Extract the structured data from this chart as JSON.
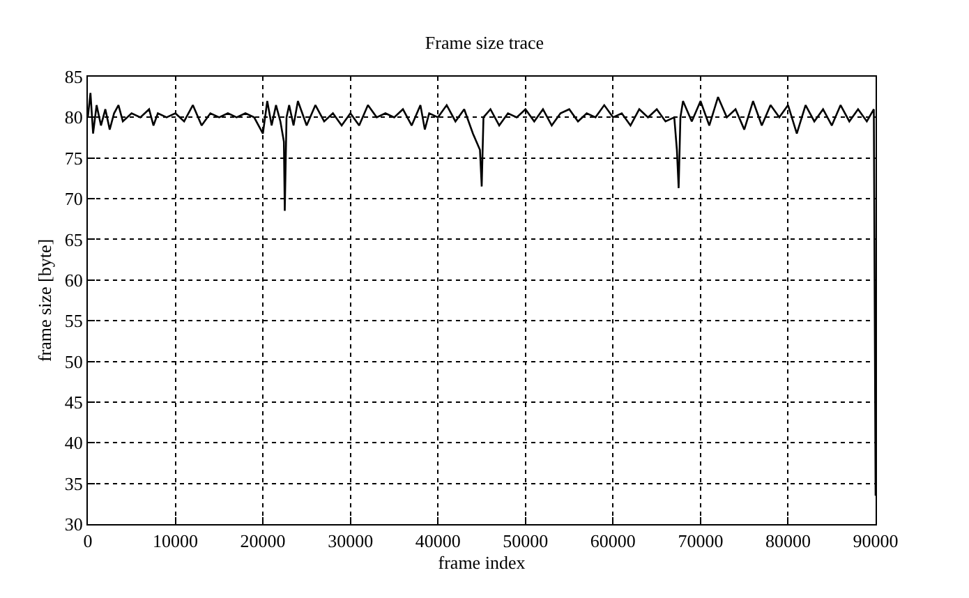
{
  "chart_data": {
    "type": "line",
    "title": "Frame size trace",
    "xlabel": "frame index",
    "ylabel": "frame size [byte]",
    "x": [
      0,
      300,
      600,
      1000,
      1500,
      2000,
      2500,
      3000,
      3500,
      4000,
      5000,
      6000,
      7000,
      7500,
      8000,
      9000,
      10000,
      11000,
      12000,
      13000,
      14000,
      15000,
      16000,
      17000,
      18000,
      19000,
      20000,
      20500,
      21000,
      21500,
      22000,
      22400,
      22500,
      22700,
      23000,
      23500,
      24000,
      25000,
      26000,
      27000,
      28000,
      29000,
      30000,
      31000,
      32000,
      33000,
      34000,
      35000,
      36000,
      37000,
      38000,
      38500,
      39000,
      40000,
      41000,
      42000,
      43000,
      44000,
      44800,
      45000,
      45200,
      46000,
      47000,
      48000,
      49000,
      50000,
      51000,
      52000,
      53000,
      54000,
      55000,
      56000,
      57000,
      58000,
      59000,
      60000,
      61000,
      62000,
      63000,
      64000,
      65000,
      66000,
      67000,
      67300,
      67500,
      67700,
      68000,
      69000,
      70000,
      71000,
      72000,
      73000,
      74000,
      75000,
      76000,
      77000,
      78000,
      79000,
      80000,
      81000,
      82000,
      83000,
      84000,
      85000,
      86000,
      87000,
      88000,
      89000,
      89800,
      90000
    ],
    "series": [
      {
        "color": "#000000",
        "values": [
          80,
          83,
          78,
          81.5,
          79,
          81,
          78.5,
          80.5,
          81.5,
          79.5,
          80.5,
          80,
          81,
          79,
          80.5,
          80,
          80.5,
          79.5,
          81.5,
          79,
          80.5,
          80,
          80.5,
          80,
          80.5,
          80,
          78,
          82,
          79,
          81.5,
          79.5,
          77,
          68.5,
          80,
          81.5,
          79,
          82,
          79,
          81.5,
          79.5,
          80.5,
          79,
          80.5,
          79,
          81.5,
          80,
          80.5,
          80,
          81,
          79,
          81.5,
          78.5,
          80.5,
          80,
          81.5,
          79.5,
          81,
          78,
          76,
          71.5,
          80,
          81,
          79,
          80.5,
          80,
          81,
          79.5,
          81,
          79,
          80.5,
          81,
          79.5,
          80.5,
          80,
          81.5,
          80,
          80.5,
          79,
          81,
          80,
          81,
          79.5,
          80,
          76,
          71.3,
          80,
          82,
          79.5,
          82,
          79,
          82.5,
          80,
          81,
          78.5,
          82,
          79,
          81.5,
          80,
          81.5,
          78,
          81.5,
          79.5,
          81,
          79,
          81.5,
          79.5,
          81,
          79.5,
          81,
          33.5
        ]
      }
    ],
    "xlim": [
      0,
      90000
    ],
    "xticks": [
      0,
      10000,
      20000,
      30000,
      40000,
      50000,
      60000,
      70000,
      80000,
      90000
    ],
    "ylim": [
      30,
      85
    ],
    "yticks": [
      30,
      35,
      40,
      45,
      50,
      55,
      60,
      65,
      70,
      75,
      80,
      85
    ],
    "grid": true,
    "line_style": "solid",
    "marker": "none"
  }
}
